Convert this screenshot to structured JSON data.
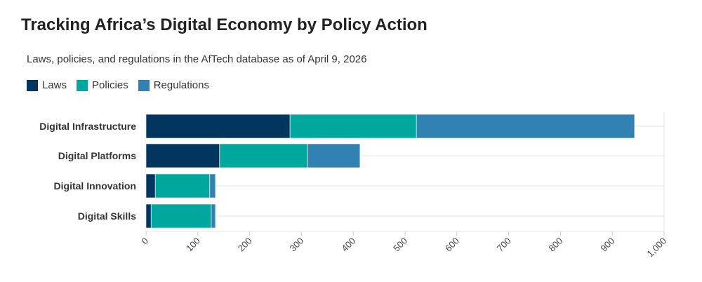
{
  "chart_data": {
    "type": "bar",
    "orientation": "horizontal",
    "stacked": true,
    "title": "Tracking Africa’s Digital Economy by Policy Action",
    "subtitle": "Laws, policies, and regulations in the AfTech database as of April 9, 2026",
    "categories": [
      "Digital Infrastructure",
      "Digital Platforms",
      "Digital Innovation",
      "Digital Skills"
    ],
    "series": [
      {
        "name": "Laws",
        "color": "#03365f",
        "values": [
          278,
          142,
          18,
          10
        ]
      },
      {
        "name": "Policies",
        "color": "#00a79d",
        "values": [
          244,
          170,
          105,
          116
        ]
      },
      {
        "name": "Regulations",
        "color": "#3181b2",
        "values": [
          421,
          101,
          11,
          8
        ]
      }
    ],
    "xlim": [
      0,
      1000
    ],
    "xticks": [
      0,
      100,
      200,
      300,
      400,
      500,
      600,
      700,
      800,
      900,
      1000
    ],
    "xtick_labels": [
      "0",
      "100",
      "200",
      "300",
      "400",
      "500",
      "600",
      "700",
      "800",
      "900",
      "1,000"
    ],
    "grid": "horizontal category lines",
    "legend": "top-left"
  }
}
